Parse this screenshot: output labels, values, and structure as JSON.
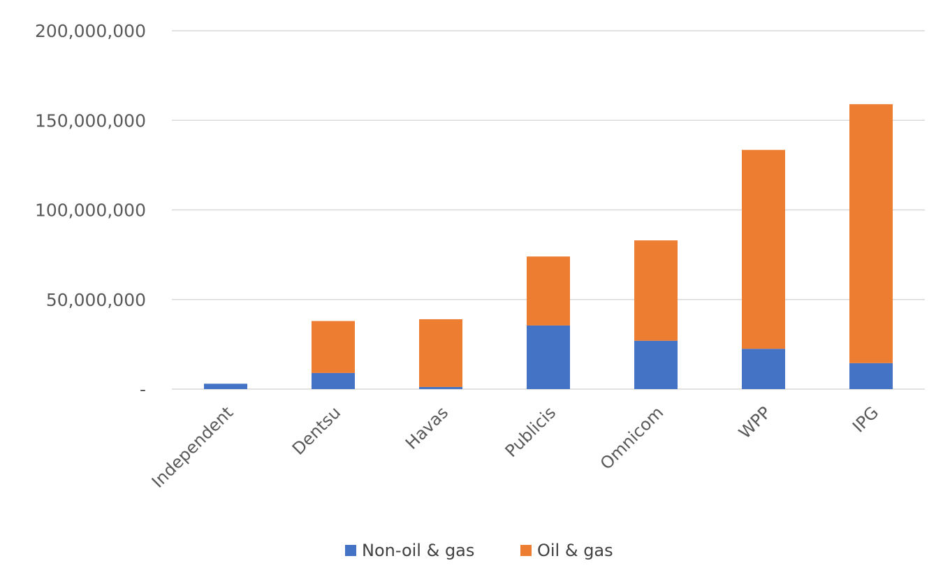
{
  "chart_data": {
    "type": "bar",
    "stacked": true,
    "title": "",
    "xlabel": "",
    "ylabel": "",
    "categories": [
      "Independent",
      "Dentsu",
      "Havas",
      "Publicis",
      "Omnicom",
      "WPP",
      "IPG"
    ],
    "series": [
      {
        "name": "Non-oil & gas",
        "color": "#4472c4",
        "values": [
          3000000,
          9000000,
          1200000,
          35500000,
          27000000,
          22500000,
          14500000
        ]
      },
      {
        "name": "Oil & gas",
        "color": "#ed7d31",
        "values": [
          0,
          29000000,
          37800000,
          38500000,
          56000000,
          111000000,
          144500000
        ]
      }
    ],
    "ylim": [
      0,
      200000000
    ],
    "yticks": [
      0,
      50000000,
      100000000,
      150000000,
      200000000
    ],
    "ytick_labels": [
      "-",
      "50,000,000",
      "100,000,000",
      "150,000,000",
      "200,000,000"
    ],
    "grid": true,
    "gridline_color": "#d9d9d9",
    "legend_position": "bottom"
  }
}
